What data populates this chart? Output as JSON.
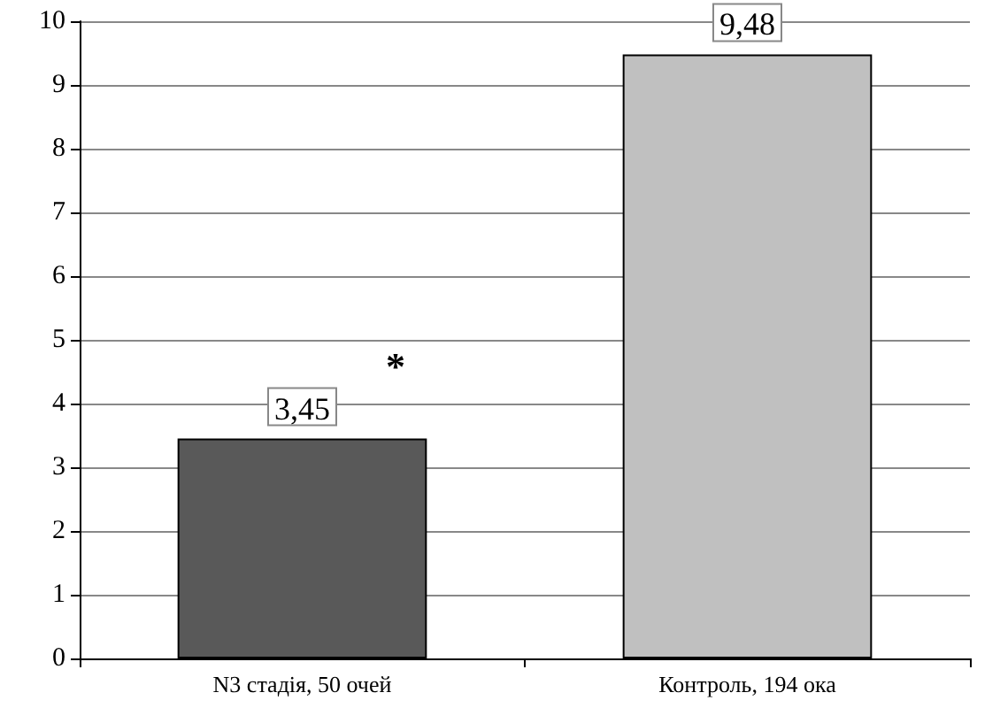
{
  "chart_data": {
    "type": "bar",
    "categories": [
      "N3 стадія, 50 очей",
      "Контроль, 194 ока"
    ],
    "values": [
      3.45,
      9.48
    ],
    "colors": [
      "#595959",
      "#c0c0c0"
    ],
    "value_labels": [
      "3,45",
      "9,48"
    ],
    "annotations": [
      "*"
    ],
    "ylim": [
      0,
      10
    ],
    "yticks": [
      0,
      1,
      2,
      3,
      4,
      5,
      6,
      7,
      8,
      9,
      10
    ],
    "grid": "y"
  }
}
